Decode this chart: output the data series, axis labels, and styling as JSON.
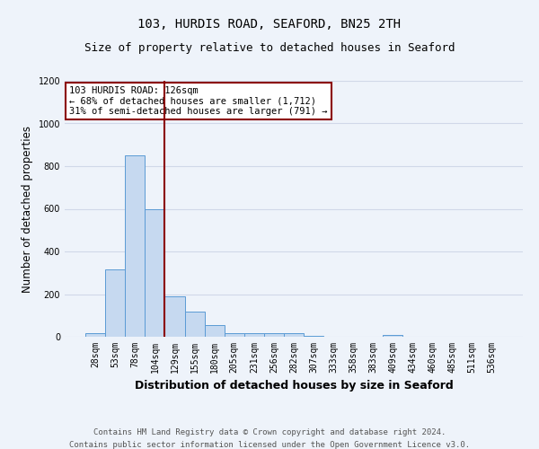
{
  "title_line1": "103, HURDIS ROAD, SEAFORD, BN25 2TH",
  "title_line2": "Size of property relative to detached houses in Seaford",
  "xlabel": "Distribution of detached houses by size in Seaford",
  "ylabel": "Number of detached properties",
  "categories": [
    "28sqm",
    "53sqm",
    "78sqm",
    "104sqm",
    "129sqm",
    "155sqm",
    "180sqm",
    "205sqm",
    "231sqm",
    "256sqm",
    "282sqm",
    "307sqm",
    "333sqm",
    "358sqm",
    "383sqm",
    "409sqm",
    "434sqm",
    "460sqm",
    "485sqm",
    "511sqm",
    "536sqm"
  ],
  "values": [
    15,
    315,
    850,
    600,
    190,
    120,
    55,
    15,
    15,
    15,
    15,
    5,
    0,
    0,
    0,
    10,
    0,
    0,
    0,
    0,
    0
  ],
  "bar_color": "#c6d9f0",
  "bar_edge_color": "#5b9bd5",
  "property_line_x": 3.5,
  "property_line_color": "#8b0000",
  "annotation_text": "103 HURDIS ROAD: 126sqm\n← 68% of detached houses are smaller (1,712)\n31% of semi-detached houses are larger (791) →",
  "annotation_box_color": "#ffffff",
  "annotation_box_edge_color": "#8b0000",
  "footer_line1": "Contains HM Land Registry data © Crown copyright and database right 2024.",
  "footer_line2": "Contains public sector information licensed under the Open Government Licence v3.0.",
  "ylim": [
    0,
    1200
  ],
  "yticks": [
    0,
    200,
    400,
    600,
    800,
    1000,
    1200
  ],
  "grid_color": "#d0d8e8",
  "background_color": "#eef3fa",
  "title_fontsize": 10,
  "subtitle_fontsize": 9,
  "axis_label_fontsize": 8.5,
  "tick_fontsize": 7,
  "annotation_fontsize": 7.5,
  "footer_fontsize": 6.5
}
